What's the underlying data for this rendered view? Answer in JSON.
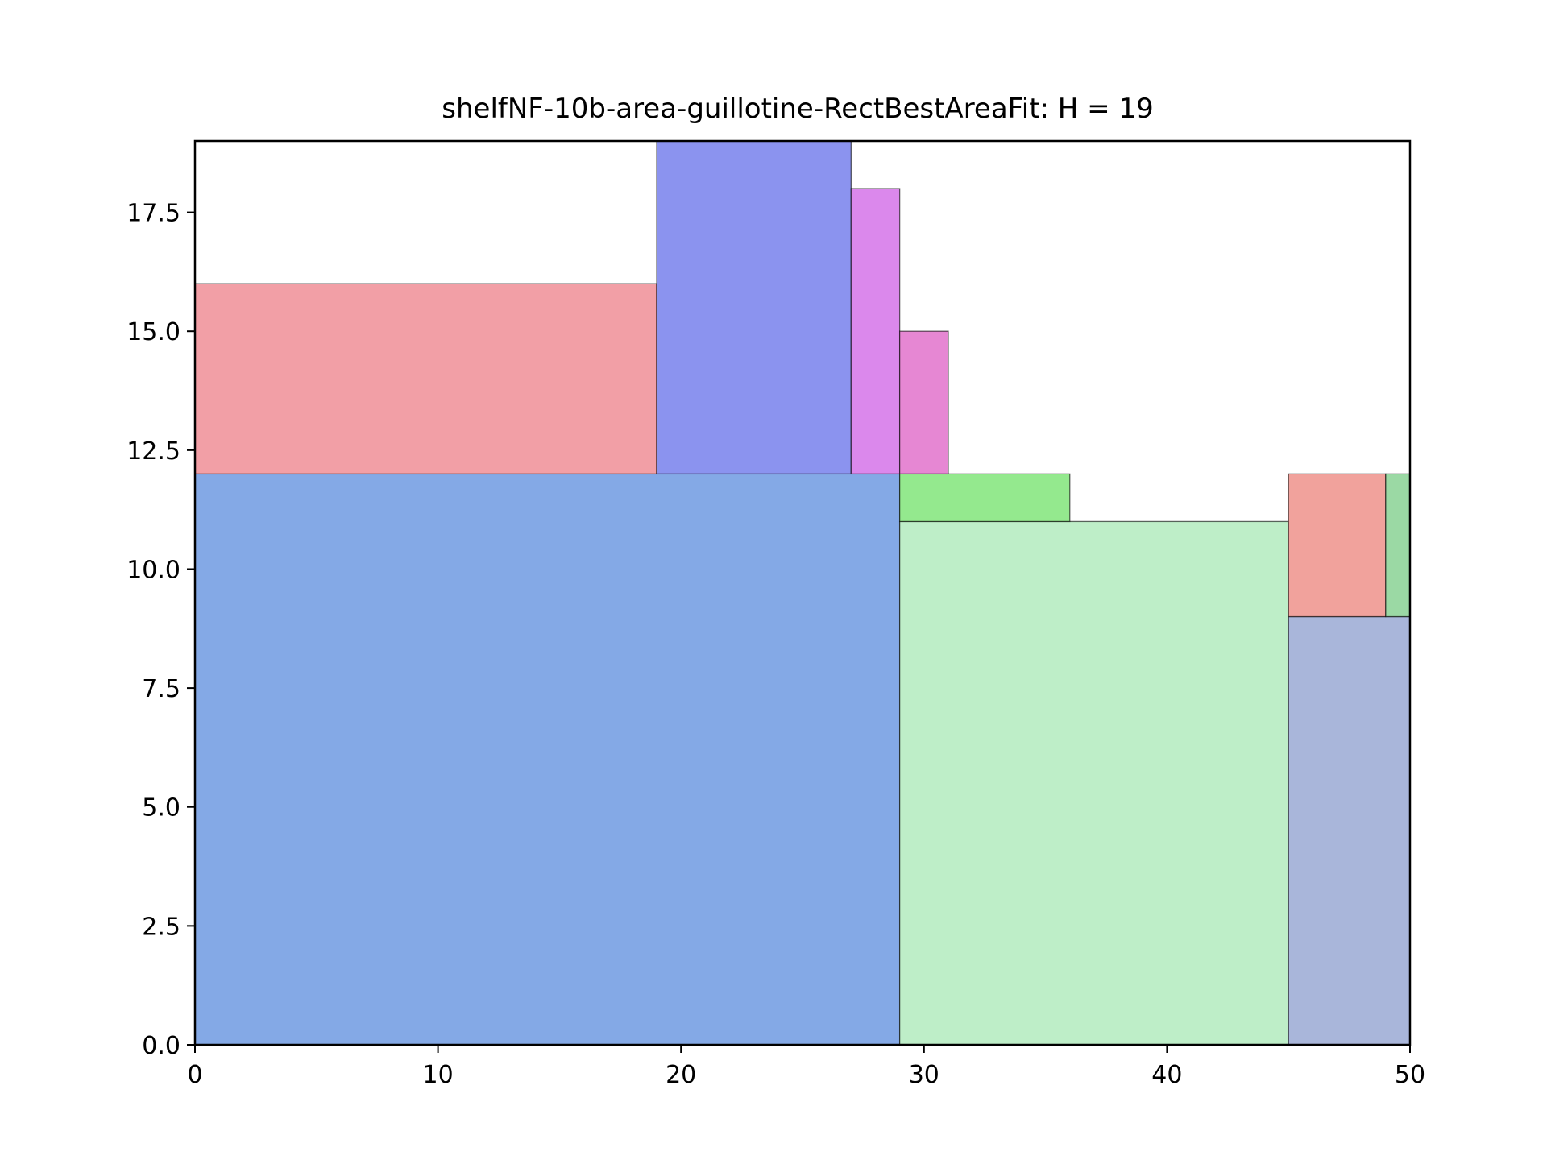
{
  "chart_data": {
    "type": "bar",
    "title": "shelfNF-10b-area-guillotine-RectBestAreaFit: H = 19",
    "xlabel": "",
    "ylabel": "",
    "xlim": [
      0,
      50
    ],
    "ylim": [
      0,
      19
    ],
    "x_ticks": [
      "0",
      "10",
      "20",
      "30",
      "40",
      "50"
    ],
    "x_tick_values": [
      0,
      10,
      20,
      30,
      40,
      50
    ],
    "y_ticks": [
      "0.0",
      "2.5",
      "5.0",
      "7.5",
      "10.0",
      "12.5",
      "15.0",
      "17.5"
    ],
    "y_tick_values": [
      0,
      2.5,
      5,
      7.5,
      10,
      12.5,
      15,
      17.5
    ],
    "grid": false,
    "rectangles": [
      {
        "x": 0,
        "y": 0,
        "w": 29,
        "h": 12,
        "color": "#84a9e6"
      },
      {
        "x": 29,
        "y": 0,
        "w": 16,
        "h": 11,
        "color": "#beeec8"
      },
      {
        "x": 45,
        "y": 0,
        "w": 5,
        "h": 9,
        "color": "#a9b6da"
      },
      {
        "x": 45,
        "y": 9,
        "w": 4,
        "h": 3,
        "color": "#f1a29c"
      },
      {
        "x": 49,
        "y": 9,
        "w": 1,
        "h": 3,
        "color": "#9bd9a4"
      },
      {
        "x": 29,
        "y": 11,
        "w": 7,
        "h": 1,
        "color": "#94e98e"
      },
      {
        "x": 0,
        "y": 12,
        "w": 19,
        "h": 4,
        "color": "#f29fa6"
      },
      {
        "x": 19,
        "y": 12,
        "w": 8,
        "h": 7,
        "color": "#8b93ef"
      },
      {
        "x": 27,
        "y": 12,
        "w": 2,
        "h": 6,
        "color": "#db88ec"
      },
      {
        "x": 29,
        "y": 12,
        "w": 2,
        "h": 3,
        "color": "#e687d3"
      }
    ]
  }
}
